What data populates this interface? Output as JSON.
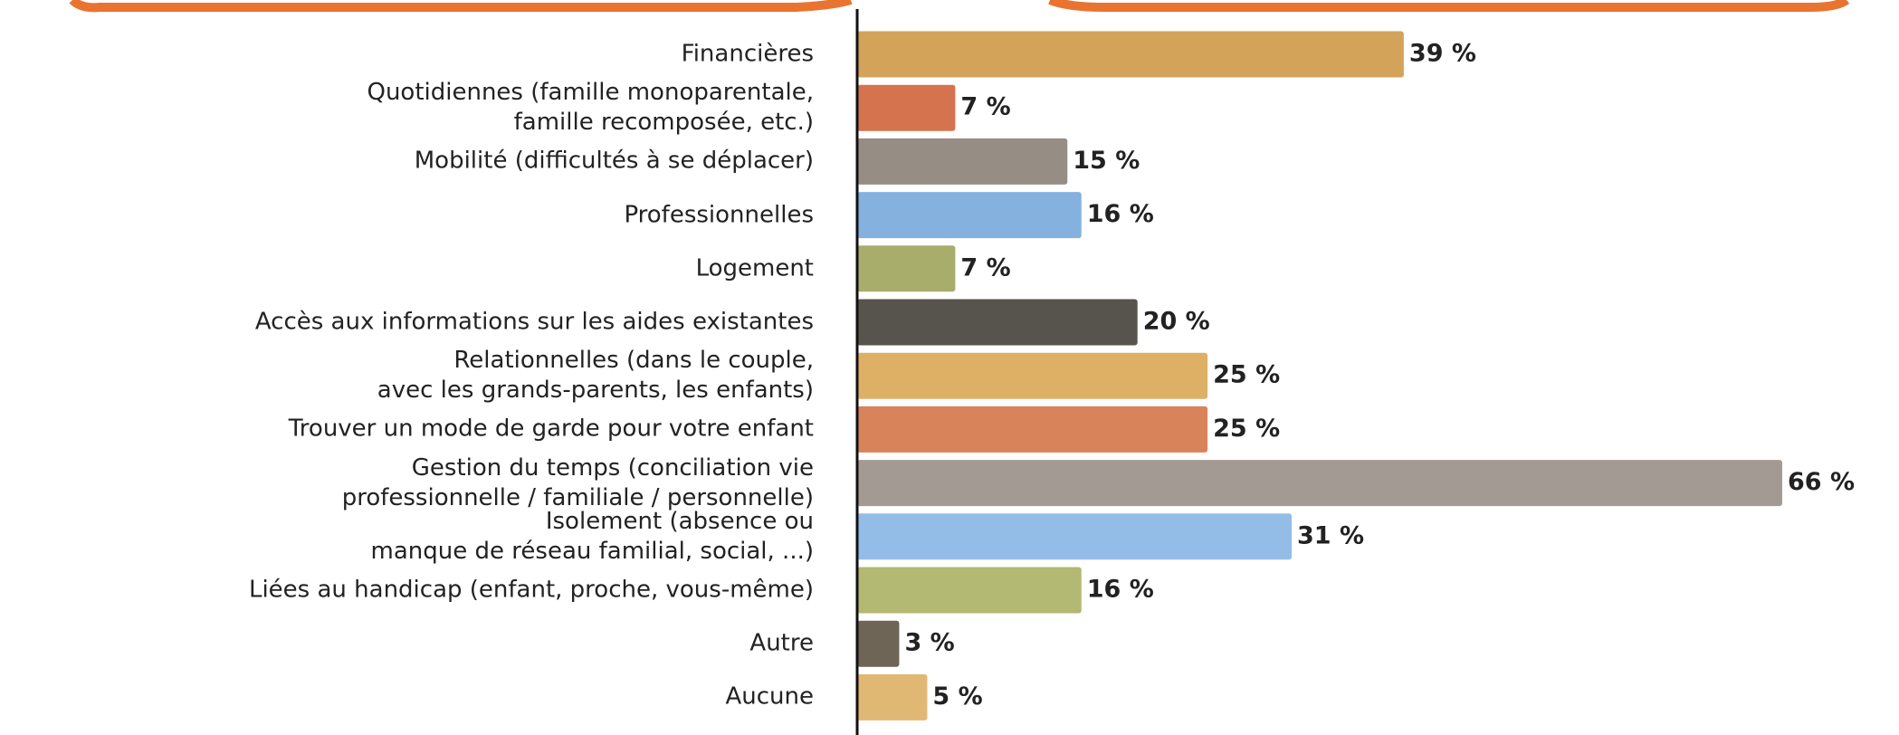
{
  "chart_data": {
    "type": "barh",
    "categories": [
      "Financières",
      "Quotidiennes (famille monoparentale,\nfamille recomposée, etc.)",
      "Mobilité (difficultés à se déplacer)",
      "Professionnelles",
      "Logement",
      "Accès aux informations sur les aides existantes",
      "Relationnelles (dans le couple,\navec les grands-parents, les enfants)",
      "Trouver un mode de garde pour votre enfant",
      "Gestion du temps (conciliation vie\nprofessionnelle / familiale / personnelle)",
      "Isolement (absence ou\nmanque de réseau familial, social, ...)",
      "Liées au handicap (enfant, proche, vous-même)",
      "Autre",
      "Aucune"
    ],
    "values": [
      39,
      7,
      15,
      16,
      7,
      20,
      25,
      25,
      66,
      31,
      16,
      3,
      5
    ],
    "value_labels": [
      "39 %",
      "7 %",
      "15 %",
      "16 %",
      "7 %",
      "20 %",
      "25 %",
      "25 %",
      "66 %",
      "31 %",
      "16 %",
      "3 %",
      "5 %"
    ],
    "colors": [
      "#d4a35a",
      "#d4734e",
      "#968d84",
      "#85b1de",
      "#a8ad6c",
      "#57534d",
      "#deb066",
      "#d8835a",
      "#a39b93",
      "#93bde6",
      "#b3b872",
      "#6e6556",
      "#e0b874"
    ]
  }
}
